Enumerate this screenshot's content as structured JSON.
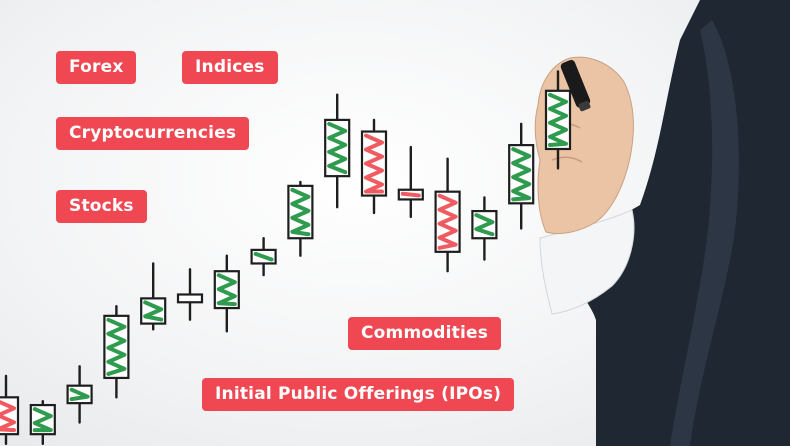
{
  "tags": {
    "forex": "Forex",
    "indices": "Indices",
    "cryptocurrencies": "Cryptocurrencies",
    "stocks": "Stocks",
    "commodities": "Commodities",
    "ipos": "Initial Public Offerings (IPOs)"
  },
  "colors": {
    "tag": "#f04852",
    "candle_up": "#2e9b4e",
    "candle_down": "#ef5b61",
    "outline": "#1e1e1e",
    "suit": "#1f2733"
  },
  "chart_data": {
    "type": "candlestick",
    "candles": [
      {
        "direction": "down",
        "open": 2.2,
        "close": 0.3,
        "high": 3.3,
        "low": -0.2
      },
      {
        "direction": "up",
        "open": 0.3,
        "close": 1.8,
        "high": 2.0,
        "low": -0.2
      },
      {
        "direction": "up",
        "open": 1.9,
        "close": 2.8,
        "high": 3.8,
        "low": 0.9
      },
      {
        "direction": "up",
        "open": 3.2,
        "close": 6.4,
        "high": 6.9,
        "low": 2.2
      },
      {
        "direction": "up",
        "open": 6.0,
        "close": 7.3,
        "high": 9.1,
        "low": 5.7
      },
      {
        "direction": "down",
        "open": 7.5,
        "close": 7.1,
        "high": 8.8,
        "low": 6.2
      },
      {
        "direction": "up",
        "open": 6.8,
        "close": 8.7,
        "high": 9.5,
        "low": 5.6
      },
      {
        "direction": "up",
        "open": 9.1,
        "close": 9.8,
        "high": 10.4,
        "low": 8.5
      },
      {
        "direction": "up",
        "open": 10.4,
        "close": 13.1,
        "high": 13.3,
        "low": 9.5
      },
      {
        "direction": "up",
        "open": 13.6,
        "close": 16.5,
        "high": 17.8,
        "low": 12.0
      },
      {
        "direction": "down",
        "open": 15.9,
        "close": 12.6,
        "high": 16.5,
        "low": 11.7
      },
      {
        "direction": "down",
        "open": 12.9,
        "close": 12.4,
        "high": 15.1,
        "low": 11.5
      },
      {
        "direction": "down",
        "open": 12.8,
        "close": 9.7,
        "high": 14.5,
        "low": 8.7
      },
      {
        "direction": "up",
        "open": 10.4,
        "close": 11.8,
        "high": 12.5,
        "low": 9.3
      },
      {
        "direction": "up",
        "open": 12.2,
        "close": 15.2,
        "high": 16.3,
        "low": 10.9
      },
      {
        "direction": "up",
        "open": 15.0,
        "close": 18.0,
        "high": 19.0,
        "low": 14.0
      }
    ]
  }
}
